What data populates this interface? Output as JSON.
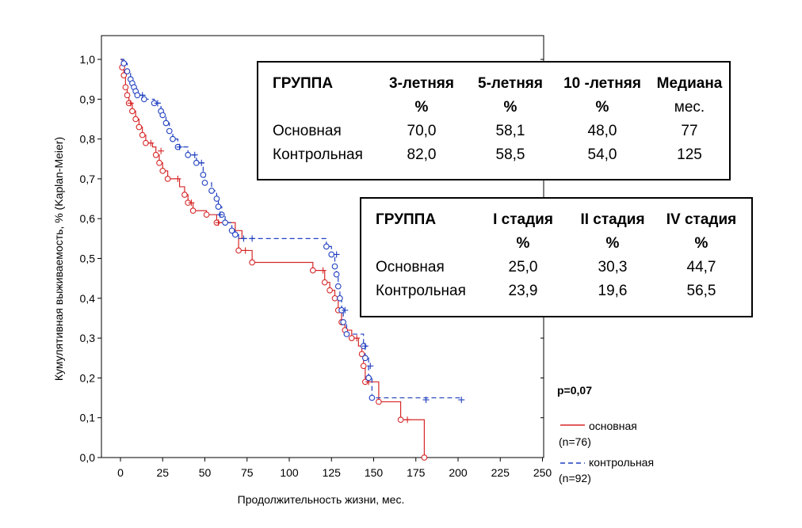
{
  "chart_data": {
    "type": "line",
    "subtype": "kaplan-meier step curves",
    "xlabel": "Продолжительность жизни, мес.",
    "ylabel": "Кумулятивная выживаемость, % (Kaplan-Meier)",
    "xlim": [
      -10,
      250
    ],
    "ylim": [
      0,
      1.0
    ],
    "x_ticks": [
      "0",
      "25",
      "50",
      "75",
      "100",
      "125",
      "150",
      "175",
      "200",
      "225",
      "250"
    ],
    "y_ticks": [
      "0,0",
      "0,1",
      "0,2",
      "0,3",
      "0,4",
      "0,5",
      "0,6",
      "0,7",
      "0,8",
      "0,9",
      "1,0"
    ],
    "grid": false,
    "annotation": "p=0,07",
    "legend_position": "bottom-right, outside plot",
    "series": [
      {
        "name": "основная",
        "count_label": "(n=76)",
        "color": "#d62728",
        "line_style": "solid",
        "event_marker": "circle",
        "steps": [
          [
            0,
            1.0
          ],
          [
            1,
            0.98
          ],
          [
            2,
            0.96
          ],
          [
            3,
            0.93
          ],
          [
            4,
            0.91
          ],
          [
            5,
            0.89
          ],
          [
            7,
            0.87
          ],
          [
            9,
            0.85
          ],
          [
            11,
            0.83
          ],
          [
            13,
            0.81
          ],
          [
            15,
            0.79
          ],
          [
            19,
            0.78
          ],
          [
            21,
            0.76
          ],
          [
            23,
            0.74
          ],
          [
            25,
            0.72
          ],
          [
            28,
            0.7
          ],
          [
            35,
            0.68
          ],
          [
            38,
            0.66
          ],
          [
            40,
            0.64
          ],
          [
            43,
            0.62
          ],
          [
            51,
            0.61
          ],
          [
            57,
            0.59
          ],
          [
            68,
            0.57
          ],
          [
            72,
            0.55
          ],
          [
            70,
            0.52
          ],
          [
            78,
            0.49
          ],
          [
            114,
            0.47
          ],
          [
            121,
            0.44
          ],
          [
            124,
            0.42
          ],
          [
            127,
            0.4
          ],
          [
            129,
            0.37
          ],
          [
            131,
            0.34
          ],
          [
            133,
            0.32
          ],
          [
            137,
            0.3
          ],
          [
            141,
            0.28
          ],
          [
            143,
            0.26
          ],
          [
            144,
            0.23
          ],
          [
            145,
            0.19
          ],
          [
            153,
            0.14
          ],
          [
            166,
            0.095
          ],
          [
            180,
            0.0
          ]
        ],
        "events": [
          [
            1,
            0.98
          ],
          [
            2,
            0.96
          ],
          [
            3,
            0.93
          ],
          [
            4,
            0.91
          ],
          [
            5,
            0.89
          ],
          [
            7,
            0.87
          ],
          [
            9,
            0.85
          ],
          [
            11,
            0.83
          ],
          [
            13,
            0.81
          ],
          [
            15,
            0.79
          ],
          [
            21,
            0.76
          ],
          [
            23,
            0.74
          ],
          [
            25,
            0.72
          ],
          [
            28,
            0.7
          ],
          [
            38,
            0.66
          ],
          [
            40,
            0.64
          ],
          [
            43,
            0.62
          ],
          [
            51,
            0.61
          ],
          [
            57,
            0.59
          ],
          [
            70,
            0.52
          ],
          [
            78,
            0.49
          ],
          [
            114,
            0.47
          ],
          [
            121,
            0.44
          ],
          [
            124,
            0.42
          ],
          [
            127,
            0.4
          ],
          [
            129,
            0.37
          ],
          [
            131,
            0.34
          ],
          [
            133,
            0.32
          ],
          [
            137,
            0.3
          ],
          [
            143,
            0.26
          ],
          [
            144,
            0.23
          ],
          [
            145,
            0.19
          ],
          [
            153,
            0.14
          ],
          [
            166,
            0.095
          ],
          [
            180,
            0.0
          ]
        ],
        "censored": [
          [
            6,
            0.89
          ],
          [
            18,
            0.79
          ],
          [
            24,
            0.77
          ],
          [
            34,
            0.7
          ],
          [
            42,
            0.64
          ],
          [
            58,
            0.59
          ],
          [
            74,
            0.52
          ],
          [
            120,
            0.47
          ],
          [
            140,
            0.3
          ],
          [
            147,
            0.19
          ],
          [
            170,
            0.095
          ]
        ]
      },
      {
        "name": "контрольная",
        "count_label": "(n=92)",
        "color": "#1f3fbf",
        "line_style": "dashed",
        "event_marker": "circle",
        "steps": [
          [
            0,
            1.0
          ],
          [
            2,
            0.99
          ],
          [
            4,
            0.97
          ],
          [
            6,
            0.95
          ],
          [
            7,
            0.94
          ],
          [
            8,
            0.93
          ],
          [
            9,
            0.92
          ],
          [
            10,
            0.91
          ],
          [
            14,
            0.9
          ],
          [
            20,
            0.89
          ],
          [
            24,
            0.87
          ],
          [
            25,
            0.86
          ],
          [
            27,
            0.84
          ],
          [
            29,
            0.82
          ],
          [
            31,
            0.8
          ],
          [
            34,
            0.78
          ],
          [
            40,
            0.76
          ],
          [
            45,
            0.74
          ],
          [
            49,
            0.71
          ],
          [
            50,
            0.69
          ],
          [
            54,
            0.67
          ],
          [
            57,
            0.65
          ],
          [
            58,
            0.63
          ],
          [
            60,
            0.61
          ],
          [
            62,
            0.59
          ],
          [
            66,
            0.57
          ],
          [
            68,
            0.56
          ],
          [
            70,
            0.55
          ],
          [
            122,
            0.53
          ],
          [
            125,
            0.51
          ],
          [
            127,
            0.48
          ],
          [
            128,
            0.46
          ],
          [
            129,
            0.43
          ],
          [
            130,
            0.4
          ],
          [
            131,
            0.37
          ],
          [
            132,
            0.34
          ],
          [
            134,
            0.31
          ],
          [
            144,
            0.28
          ],
          [
            145,
            0.25
          ],
          [
            147,
            0.2
          ],
          [
            149,
            0.15
          ]
        ],
        "events": [
          [
            2,
            0.99
          ],
          [
            4,
            0.97
          ],
          [
            6,
            0.95
          ],
          [
            7,
            0.94
          ],
          [
            8,
            0.93
          ],
          [
            9,
            0.92
          ],
          [
            10,
            0.91
          ],
          [
            14,
            0.9
          ],
          [
            20,
            0.89
          ],
          [
            24,
            0.87
          ],
          [
            25,
            0.86
          ],
          [
            27,
            0.84
          ],
          [
            29,
            0.82
          ],
          [
            31,
            0.8
          ],
          [
            34,
            0.78
          ],
          [
            40,
            0.76
          ],
          [
            45,
            0.74
          ],
          [
            49,
            0.71
          ],
          [
            50,
            0.69
          ],
          [
            54,
            0.67
          ],
          [
            57,
            0.65
          ],
          [
            58,
            0.63
          ],
          [
            60,
            0.61
          ],
          [
            62,
            0.59
          ],
          [
            66,
            0.57
          ],
          [
            68,
            0.56
          ],
          [
            122,
            0.53
          ],
          [
            125,
            0.51
          ],
          [
            127,
            0.48
          ],
          [
            128,
            0.46
          ],
          [
            129,
            0.43
          ],
          [
            130,
            0.4
          ],
          [
            131,
            0.37
          ],
          [
            132,
            0.34
          ],
          [
            134,
            0.31
          ],
          [
            144,
            0.28
          ],
          [
            145,
            0.25
          ],
          [
            147,
            0.2
          ],
          [
            149,
            0.15
          ]
        ],
        "censored": [
          [
            13,
            0.91
          ],
          [
            22,
            0.89
          ],
          [
            35,
            0.78
          ],
          [
            44,
            0.76
          ],
          [
            48,
            0.74
          ],
          [
            59,
            0.61
          ],
          [
            73,
            0.55
          ],
          [
            78,
            0.55
          ],
          [
            128,
            0.51
          ],
          [
            133,
            0.37
          ],
          [
            145,
            0.28
          ],
          [
            148,
            0.23
          ],
          [
            181,
            0.145
          ],
          [
            202,
            0.145
          ]
        ]
      }
    ]
  },
  "table1": {
    "header": [
      [
        "ГРУППА",
        ""
      ],
      [
        "3-летняя",
        "%"
      ],
      [
        "5-летняя",
        "%"
      ],
      [
        "10 -летняя",
        "%"
      ],
      [
        "Медиана",
        "мес."
      ]
    ],
    "rows": [
      [
        "Основная",
        "70,0",
        "58,1",
        "48,0",
        "77"
      ],
      [
        "Контрольная",
        "82,0",
        "58,5",
        "54,0",
        "125"
      ]
    ]
  },
  "table2": {
    "header": [
      [
        "ГРУППА",
        ""
      ],
      [
        "I стадия",
        "%"
      ],
      [
        "II стадия",
        "%"
      ],
      [
        "IV стадия",
        "%"
      ]
    ],
    "rows": [
      [
        "Основная",
        "25,0",
        "30,3",
        "44,7"
      ],
      [
        "Контрольная",
        "23,9",
        "19,6",
        "56,5"
      ]
    ]
  }
}
